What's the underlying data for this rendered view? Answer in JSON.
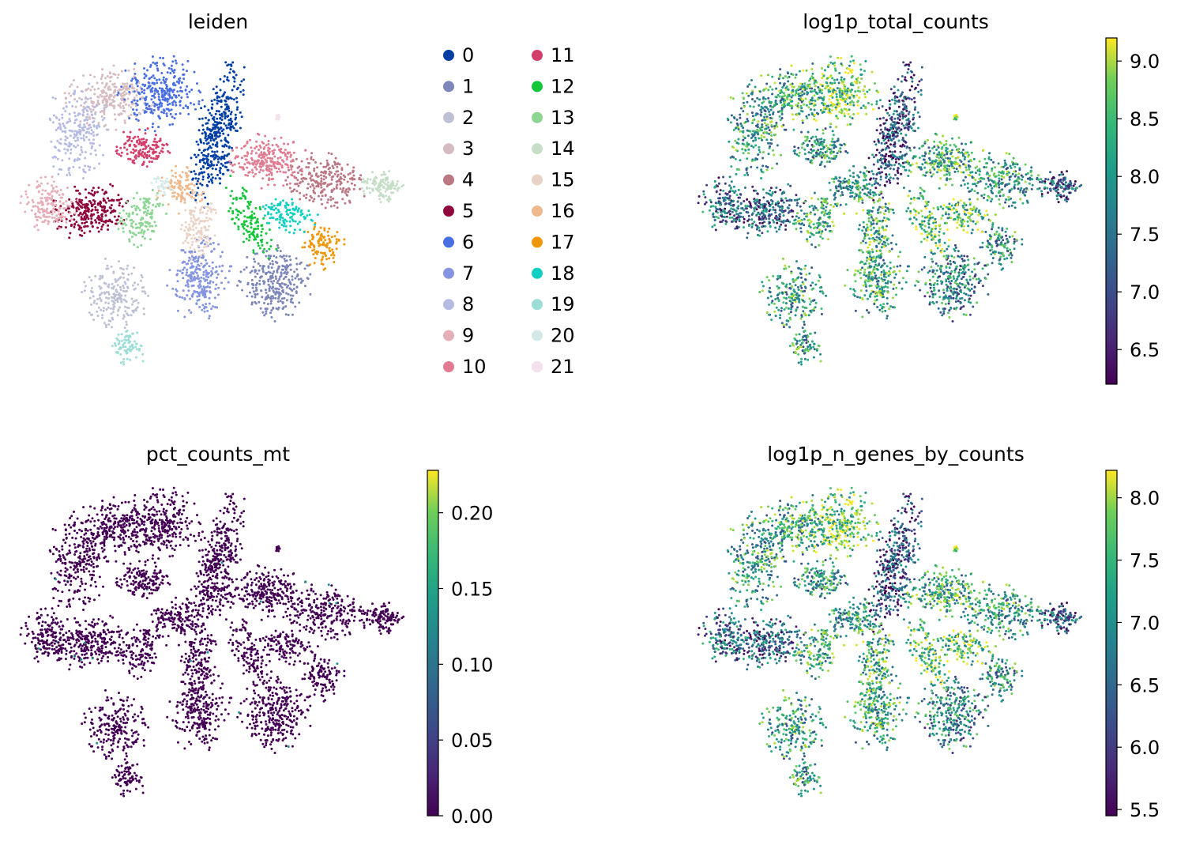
{
  "chart_data": [
    {
      "type": "scatter",
      "title": "leiden",
      "xlabel": "",
      "ylabel": "",
      "legend_position": "right",
      "categories": [
        "0",
        "1",
        "2",
        "3",
        "4",
        "5",
        "6",
        "7",
        "8",
        "9",
        "10",
        "11",
        "12",
        "13",
        "14",
        "15",
        "16",
        "17",
        "18",
        "19",
        "20",
        "21"
      ],
      "colors": [
        "#023fa5",
        "#7d87b9",
        "#bec1d4",
        "#d6bcc0",
        "#bb7784",
        "#8e063b",
        "#4a6fe3",
        "#8595e1",
        "#b5bbe3",
        "#e6afb9",
        "#e07b91",
        "#d33f6a",
        "#11c638",
        "#8dd593",
        "#c6dec7",
        "#ead3c6",
        "#f0b98d",
        "#ef9708",
        "#0fcfc0",
        "#9cded6",
        "#d5eae7",
        "#f3e1eb"
      ]
    },
    {
      "type": "scatter",
      "title": "log1p_total_counts",
      "colorbar": {
        "ticks": [
          "6.5",
          "7.0",
          "7.5",
          "8.0",
          "8.5",
          "9.0"
        ],
        "range": [
          6.2,
          9.2
        ],
        "colormap": "viridis"
      }
    },
    {
      "type": "scatter",
      "title": "pct_counts_mt",
      "colorbar": {
        "ticks": [
          "0.00",
          "0.05",
          "0.10",
          "0.15",
          "0.20"
        ],
        "range": [
          0.0,
          0.228
        ],
        "colormap": "viridis"
      }
    },
    {
      "type": "scatter",
      "title": "log1p_n_genes_by_counts",
      "colorbar": {
        "ticks": [
          "5.5",
          "6.0",
          "6.5",
          "7.0",
          "7.5",
          "8.0"
        ],
        "range": [
          5.45,
          8.22
        ],
        "colormap": "viridis"
      }
    }
  ]
}
